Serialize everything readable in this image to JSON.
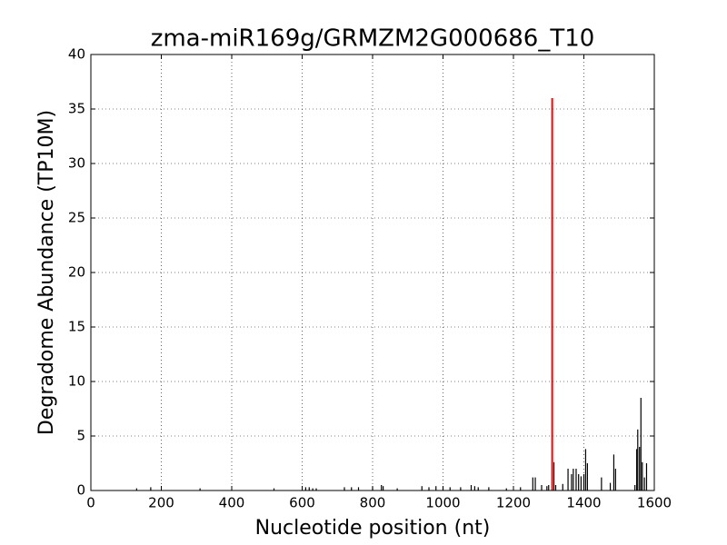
{
  "chart_data": {
    "type": "stem",
    "title": "zma-miR169g/GRMZM2G000686_T10",
    "x_label": "Nucleotide position (nt)",
    "y_label": "Degradome Abundance (TP10M)",
    "xlim": [
      0,
      1600
    ],
    "ylim": [
      0,
      40
    ],
    "xticks": [
      0,
      200,
      400,
      600,
      800,
      1000,
      1200,
      1400,
      1600
    ],
    "yticks": [
      0,
      5,
      10,
      15,
      20,
      25,
      30,
      35,
      40
    ],
    "grid": true,
    "series": [
      {
        "color": "#000000",
        "x": [
          130,
          170,
          310,
          520,
          610,
          620,
          630,
          640,
          720,
          740,
          760,
          800,
          825,
          830,
          870,
          940,
          960,
          980,
          1000,
          1020,
          1050,
          1080,
          1090,
          1100,
          1130,
          1180,
          1220,
          1255,
          1262,
          1280,
          1295,
          1300,
          1315,
          1320,
          1340,
          1355,
          1365,
          1370,
          1378,
          1385,
          1392,
          1400,
          1405,
          1410,
          1450,
          1475,
          1485,
          1490,
          1545,
          1550,
          1553,
          1558,
          1562,
          1566,
          1572,
          1578
        ],
        "values": [
          0.2,
          0.3,
          0.2,
          0.2,
          0.3,
          0.3,
          0.2,
          0.2,
          0.3,
          0.3,
          0.3,
          0.3,
          0.5,
          0.4,
          0.2,
          0.4,
          0.3,
          0.4,
          0.3,
          0.3,
          0.3,
          0.5,
          0.4,
          0.3,
          0.3,
          0.2,
          0.3,
          1.2,
          1.2,
          0.5,
          0.4,
          0.5,
          2.6,
          0.5,
          0.6,
          2.0,
          1.5,
          2.0,
          2.0,
          1.5,
          1.3,
          1.5,
          3.8,
          2.5,
          1.2,
          0.7,
          3.3,
          2.0,
          0.5,
          3.8,
          5.6,
          4.0,
          8.5,
          2.6,
          1.2,
          2.5
        ]
      },
      {
        "color": "#ff0000",
        "x": [
          1310
        ],
        "values": [
          36
        ]
      }
    ]
  }
}
